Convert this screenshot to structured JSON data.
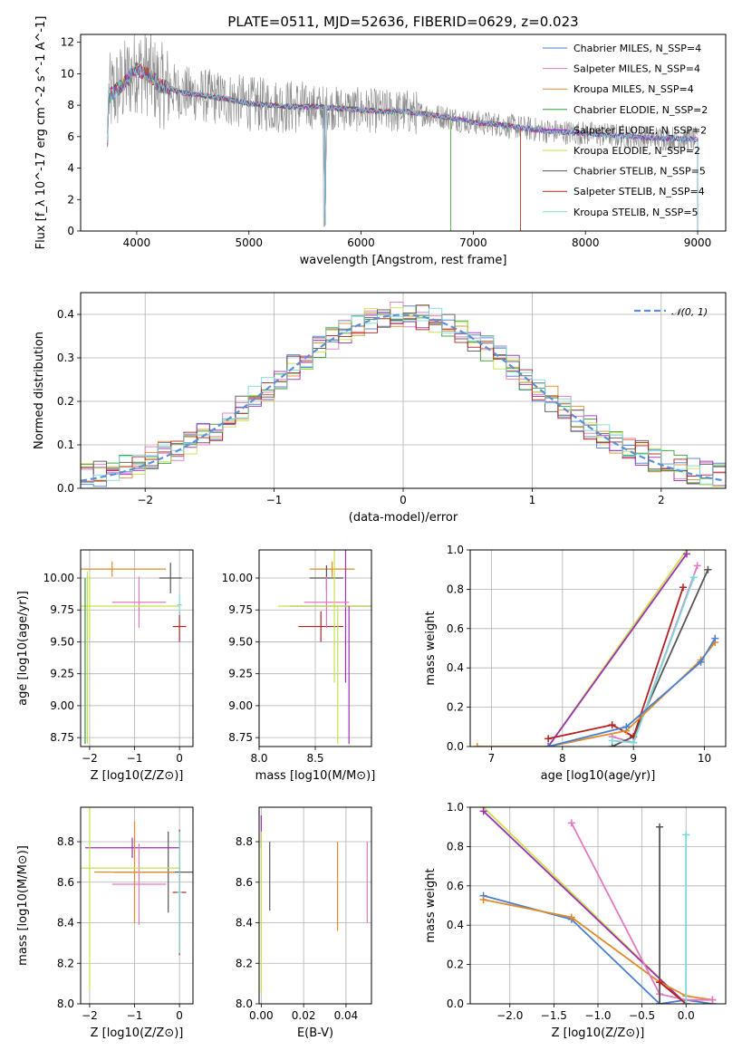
{
  "figure": {
    "title": "PLATE=0511, MJD=52636, FIBERID=0629, z=0.023"
  },
  "colors": {
    "chabrier_miles": "#4a7fd0",
    "salpeter_miles": "#e377c2",
    "kroupa_miles": "#e08a2a",
    "chabrier_elodie": "#2ca02c",
    "salpeter_elodie": "#9e2fb5",
    "kroupa_elodie": "#c4e34a",
    "chabrier_stelib": "#555555",
    "salpeter_stelib": "#b22222",
    "kroupa_stelib": "#7ad9d9",
    "normal": "#5b8fd8",
    "grid": "#b0b0b0"
  },
  "chart_data": [
    {
      "id": "spectrum",
      "type": "line",
      "xlabel": "wavelength [Angstrom, rest frame]",
      "ylabel": "Flux [f_λ 10^-17 erg cm^-2 s^-1 A^-1]",
      "xlim": [
        3500,
        9250
      ],
      "ylim": [
        0,
        12.5
      ],
      "xticks": [
        4000,
        5000,
        6000,
        7000,
        8000,
        9000
      ],
      "yticks": [
        0,
        2,
        4,
        6,
        8,
        10,
        12
      ],
      "grid": false,
      "legend_position": "top-right",
      "legend": [
        "Chabrier MILES, N_SSP=4",
        "Salpeter MILES, N_SSP=4",
        "Kroupa MILES, N_SSP=4",
        "Chabrier ELODIE, N_SSP=2",
        "Salpeter ELODIE, N_SSP=2",
        "Kroupa ELODIE, N_SSP=2",
        "Chabrier STELIB, N_SSP=5",
        "Salpeter STELIB, N_SSP=4",
        "Kroupa STELIB, N_SSP=5"
      ],
      "data_envelope": {
        "x": [
          3750,
          3900,
          4000,
          4100,
          4200,
          4400,
          4600,
          4800,
          5000,
          5200,
          5400,
          5600,
          5800,
          6000,
          6200,
          6400,
          6600,
          6800,
          7000,
          7200,
          7400,
          7600,
          7800,
          8000,
          8200,
          8400,
          8600,
          8800,
          9000
        ],
        "y": [
          8.5,
          9.5,
          10.3,
          10.0,
          9.3,
          8.8,
          8.6,
          8.4,
          8.1,
          8.0,
          7.9,
          7.9,
          7.8,
          7.7,
          7.6,
          7.6,
          7.4,
          7.2,
          6.9,
          6.8,
          6.6,
          6.4,
          6.3,
          6.2,
          6.1,
          6.0,
          5.9,
          5.9,
          5.8
        ]
      },
      "model_cutoffs": {
        "kroupa_elodie_end": 6800,
        "chabrier_elodie_end": 6800,
        "salpeter_stelib_end": 7420,
        "kroupa_miles_end": 7420
      }
    },
    {
      "id": "residuals",
      "type": "line",
      "xlabel": "(data-model)/error",
      "ylabel": "Normed distribution",
      "xlim": [
        -2.5,
        2.5
      ],
      "ylim": [
        0,
        0.45
      ],
      "xticks": [
        -2,
        -1,
        0,
        1,
        2
      ],
      "yticks": [
        0.0,
        0.1,
        0.2,
        0.3,
        0.4
      ],
      "grid": true,
      "legend_position": "top-right",
      "legend": [
        "𝒩(0, 1)"
      ],
      "normal": {
        "mu": 0,
        "sigma": 1
      }
    },
    {
      "id": "age_vs_Z",
      "type": "scatter",
      "xlabel": "Z [log10(Z/Z⊙)]",
      "ylabel": "age  [log10(age/yr)]",
      "xlim": [
        -2.2,
        0.3
      ],
      "ylim": [
        8.68,
        10.22
      ],
      "xticks": [
        -2,
        -1,
        0
      ],
      "yticks": [
        8.75,
        9.0,
        9.25,
        9.5,
        9.75,
        10.0
      ],
      "grid": true,
      "points": [
        {
          "model": "chabrier_stelib",
          "x": -0.2,
          "y": 10.0,
          "xerr": 0.25,
          "yerr": 0.12
        },
        {
          "model": "kroupa_miles",
          "x": -1.5,
          "y": 10.07,
          "xerr": 1.2,
          "yerr": 0.06
        },
        {
          "model": "salpeter_miles",
          "x": -0.9,
          "y": 9.81,
          "xerr": 0.6,
          "yerr": 0.2
        },
        {
          "model": "salpeter_stelib",
          "x": 0.0,
          "y": 9.62,
          "xerr": 0.15,
          "yerr": 0.12
        },
        {
          "model": "kroupa_elodie",
          "x": -2.0,
          "y": 9.78,
          "xerr": 2.0,
          "yerr": 0.25
        },
        {
          "model": "kroupa_stelib",
          "x": 0.0,
          "y": 9.79,
          "xerr": 0.05,
          "yerr": 0.08
        }
      ]
    },
    {
      "id": "age_vs_mass",
      "type": "scatter",
      "xlabel": "mass [log10(M/M⊙)]",
      "ylabel": "",
      "xlim": [
        8.0,
        9.0
      ],
      "ylim": [
        8.68,
        10.22
      ],
      "xticks": [
        8.0,
        8.5
      ],
      "yticks": [
        8.75,
        9.0,
        9.25,
        9.5,
        9.75,
        10.0
      ],
      "grid": true,
      "points": [
        {
          "model": "kroupa_miles",
          "x": 8.65,
          "y": 10.07,
          "xerr": 0.2,
          "yerr": 0.06
        },
        {
          "model": "chabrier_stelib",
          "x": 8.6,
          "y": 10.0,
          "xerr": 0.15,
          "yerr": 0.1
        },
        {
          "model": "salpeter_elodie",
          "x": 8.77,
          "y": 9.78,
          "xerr": 0.5,
          "yerr": 0.6
        },
        {
          "model": "salpeter_stelib",
          "x": 8.55,
          "y": 9.62,
          "xerr": 0.2,
          "yerr": 0.12
        },
        {
          "model": "salpeter_miles",
          "x": 8.6,
          "y": 9.81,
          "xerr": 0.2,
          "yerr": 0.2
        },
        {
          "model": "kroupa_elodie",
          "x": 8.67,
          "y": 9.78,
          "xerr": 0.5,
          "yerr": 0.6
        }
      ]
    },
    {
      "id": "weight_vs_age",
      "type": "line",
      "xlabel": "age  [log10(age/yr)]",
      "ylabel": "mass weight",
      "xlim": [
        6.7,
        10.3
      ],
      "ylim": [
        0.0,
        1.0
      ],
      "xticks": [
        7,
        8,
        9,
        10
      ],
      "yticks": [
        0.0,
        0.2,
        0.4,
        0.6,
        0.8,
        1.0
      ],
      "grid": true,
      "series": [
        {
          "model": "kroupa_elodie",
          "x": [
            7.8,
            9.75
          ],
          "y": [
            0.0,
            1.0
          ]
        },
        {
          "model": "salpeter_elodie",
          "x": [
            7.8,
            9.75
          ],
          "y": [
            0.0,
            0.98
          ]
        },
        {
          "model": "salpeter_miles",
          "x": [
            8.7,
            9.0,
            9.9
          ],
          "y": [
            0.05,
            0.02,
            0.92
          ]
        },
        {
          "model": "chabrier_stelib",
          "x": [
            8.7,
            9.0,
            10.05
          ],
          "y": [
            0.0,
            0.05,
            0.9
          ]
        },
        {
          "model": "salpeter_stelib",
          "x": [
            7.8,
            8.7,
            9.0,
            9.7
          ],
          "y": [
            0.04,
            0.11,
            0.05,
            0.81
          ]
        },
        {
          "model": "kroupa_stelib",
          "x": [
            8.7,
            9.0,
            9.85
          ],
          "y": [
            0.03,
            0.02,
            0.86
          ]
        },
        {
          "model": "kroupa_miles",
          "x": [
            6.8,
            7.8,
            8.9,
            9.95,
            10.15
          ],
          "y": [
            0.0,
            0.0,
            0.08,
            0.44,
            0.53
          ]
        },
        {
          "model": "chabrier_miles",
          "x": [
            7.8,
            8.9,
            9.95,
            10.15
          ],
          "y": [
            0.0,
            0.1,
            0.43,
            0.55
          ]
        }
      ]
    },
    {
      "id": "mass_vs_Z",
      "type": "scatter",
      "xlabel": "Z [log10(Z/Z⊙)]",
      "ylabel": "mass [log10(M/M⊙)]",
      "xlim": [
        -2.2,
        0.3
      ],
      "ylim": [
        8.0,
        8.97
      ],
      "xticks": [
        -2,
        -1,
        0
      ],
      "yticks": [
        8.0,
        8.2,
        8.4,
        8.6,
        8.8
      ],
      "grid": true,
      "points": [
        {
          "model": "salpeter_elodie",
          "x": -1.05,
          "y": 8.77,
          "xerr": 1.05,
          "yerr": 0.05
        },
        {
          "model": "chabrier_stelib",
          "x": -0.25,
          "y": 8.65,
          "xerr": 1.2,
          "yerr": 0.2
        },
        {
          "model": "kroupa_miles",
          "x": -1.0,
          "y": 8.65,
          "xerr": 0.9,
          "yerr": 0.25
        },
        {
          "model": "salpeter_miles",
          "x": -0.9,
          "y": 8.59,
          "xerr": 0.6,
          "yerr": 0.2
        },
        {
          "model": "salpeter_stelib",
          "x": 0.0,
          "y": 8.55,
          "xerr": 0.15,
          "yerr": 0.31
        },
        {
          "model": "kroupa_elodie",
          "x": -2.0,
          "y": 8.67,
          "xerr": 2.0,
          "yerr": 0.6
        },
        {
          "model": "kroupa_stelib",
          "x": 0.0,
          "y": 8.55,
          "xerr": 0.05,
          "yerr": 0.3
        }
      ]
    },
    {
      "id": "mass_vs_ebv",
      "type": "scatter",
      "xlabel": "E(B-V)",
      "ylabel": "",
      "xlim": [
        -0.001,
        0.052
      ],
      "ylim": [
        8.0,
        8.97
      ],
      "xticks": [
        0.0,
        0.02,
        0.04
      ],
      "yticks": [
        8.0,
        8.2,
        8.4,
        8.6,
        8.8
      ],
      "grid": true,
      "points": [
        {
          "model": "salpeter_elodie",
          "x": 0.0,
          "y": 8.85,
          "xerr": 0.0,
          "yerr": 0.08
        },
        {
          "model": "chabrier_stelib",
          "x": 0.004,
          "y": 8.63,
          "xerr": 0.0,
          "yerr": 0.17
        },
        {
          "model": "kroupa_miles",
          "x": 0.036,
          "y": 8.58,
          "xerr": 0.0,
          "yerr": 0.22
        },
        {
          "model": "salpeter_miles",
          "x": 0.05,
          "y": 8.6,
          "xerr": 0.0,
          "yerr": 0.2
        },
        {
          "model": "kroupa_elodie",
          "x": 0.0,
          "y": 8.45,
          "xerr": 0.0,
          "yerr": 0.4
        }
      ]
    },
    {
      "id": "weight_vs_Z",
      "type": "line",
      "xlabel": "Z [log10(Z/Z⊙)]",
      "ylabel": "mass weight",
      "xlim": [
        -2.45,
        0.45
      ],
      "ylim": [
        0.0,
        1.0
      ],
      "xticks": [
        -2.0,
        -1.5,
        -1.0,
        -0.5,
        0.0
      ],
      "yticks": [
        0.0,
        0.2,
        0.4,
        0.6,
        0.8,
        1.0
      ],
      "grid": true,
      "series": [
        {
          "model": "kroupa_elodie",
          "x": [
            -2.3,
            0.0
          ],
          "y": [
            1.0,
            0.0
          ]
        },
        {
          "model": "salpeter_elodie",
          "x": [
            -2.3,
            0.0
          ],
          "y": [
            0.98,
            0.0
          ]
        },
        {
          "model": "chabrier_miles",
          "x": [
            -2.3,
            -1.3,
            -0.3,
            0.0,
            0.3
          ],
          "y": [
            0.55,
            0.43,
            0.0,
            0.02,
            0.0
          ]
        },
        {
          "model": "kroupa_miles",
          "x": [
            -2.3,
            -1.3,
            -0.3,
            0.0,
            0.3
          ],
          "y": [
            0.53,
            0.44,
            0.11,
            0.04,
            0.02
          ]
        },
        {
          "model": "salpeter_miles",
          "x": [
            -1.3,
            -0.3,
            0.0,
            0.3
          ],
          "y": [
            0.92,
            0.05,
            0.02,
            0.02
          ]
        },
        {
          "model": "chabrier_stelib",
          "x": [
            -0.3,
            -0.3
          ],
          "y": [
            0.0,
            0.9
          ]
        },
        {
          "model": "salpeter_stelib",
          "x": [
            -0.3,
            0.0
          ],
          "y": [
            0.11,
            0.0
          ]
        },
        {
          "model": "kroupa_stelib",
          "x": [
            0.0,
            0.0
          ],
          "y": [
            0.0,
            0.86
          ]
        }
      ]
    }
  ]
}
